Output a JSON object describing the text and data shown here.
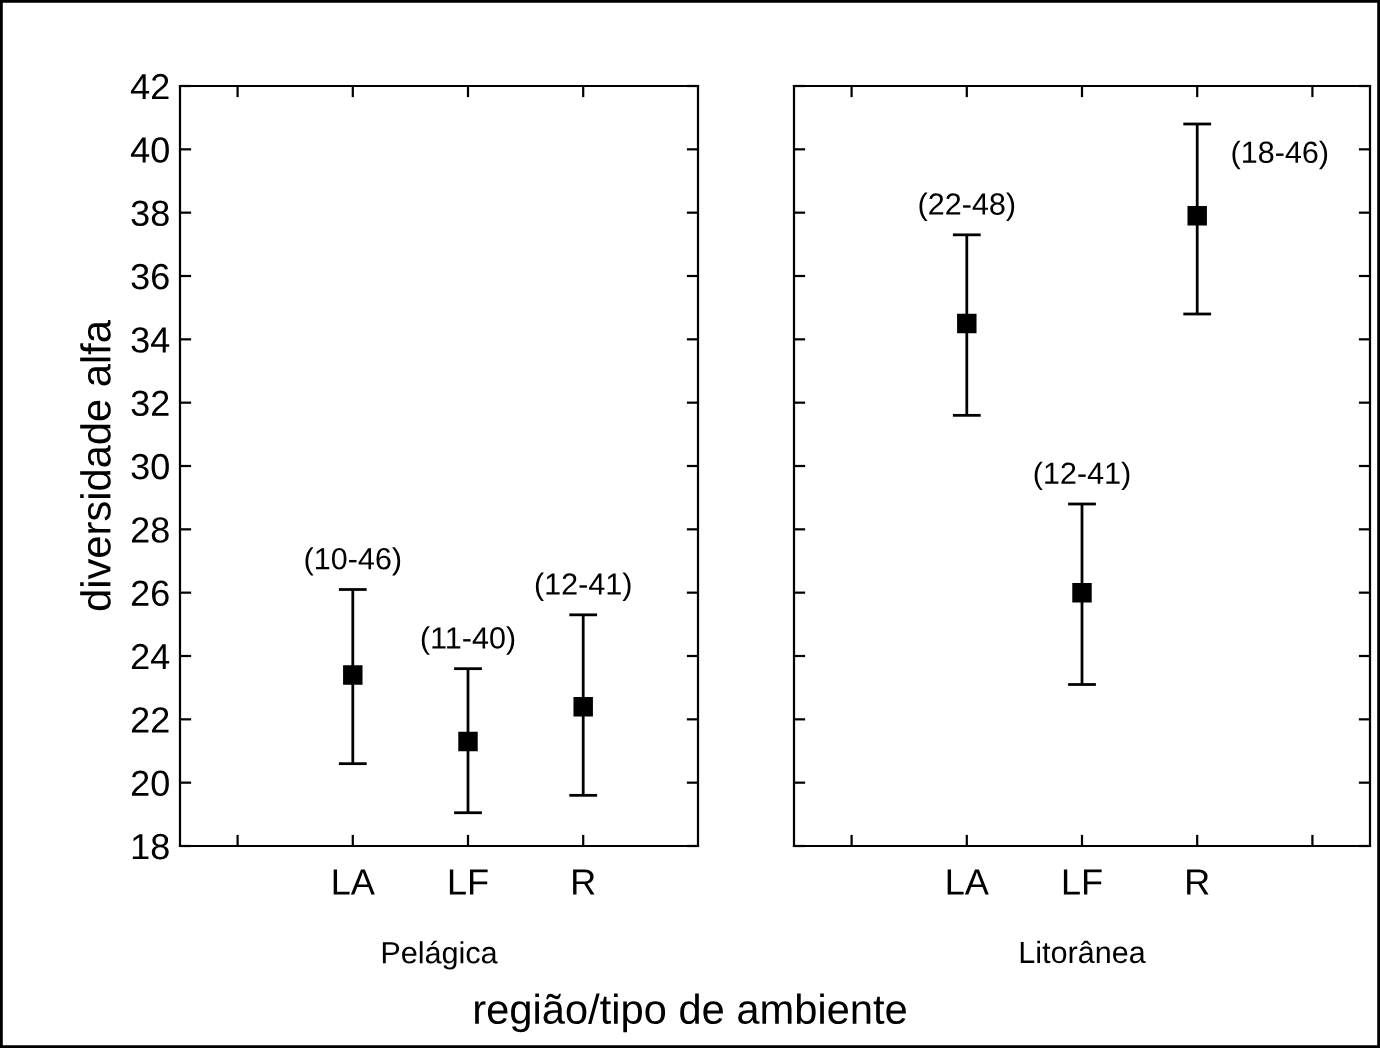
{
  "chart_data": [
    {
      "type": "scatter",
      "xlabel": "Pelágica",
      "ylabel": "diversidade alfa",
      "categories": [
        "LA",
        "LF",
        "R"
      ],
      "series": [
        {
          "color": "#000000",
          "values": [
            23.4,
            21.3,
            22.4
          ],
          "errors": [
            [
              20.6,
              26.1
            ],
            [
              19.05,
              23.6
            ],
            [
              19.6,
              25.3
            ]
          ]
        }
      ],
      "ylim": [
        18,
        42
      ],
      "yticks": [
        18,
        20,
        22,
        24,
        26,
        28,
        30,
        32,
        34,
        36,
        38,
        40,
        42
      ],
      "marker": "square",
      "grid": false,
      "legend": false,
      "annotations": [
        {
          "text": "(10-46)",
          "x": "LA",
          "y": 26.1
        },
        {
          "text": "(11-40)",
          "x": "LF",
          "y": 23.6
        },
        {
          "text": "(12-41)",
          "x": "R",
          "y": 25.3
        },
        "região/tipo de ambiente"
      ]
    },
    {
      "type": "scatter",
      "xlabel": "Litorânea",
      "categories": [
        "LA",
        "LF",
        "R"
      ],
      "series": [
        {
          "color": "#000000",
          "values": [
            34.5,
            26.0,
            37.9
          ],
          "errors": [
            [
              31.6,
              37.3
            ],
            [
              23.1,
              28.8
            ],
            [
              34.8,
              40.8
            ]
          ]
        }
      ],
      "ylim": [
        18,
        42
      ],
      "yticks": [
        18,
        20,
        22,
        24,
        26,
        28,
        30,
        32,
        34,
        36,
        38,
        40,
        42
      ],
      "marker": "square",
      "grid": false,
      "legend": false,
      "tick_labels": "x",
      "annotations": [
        {
          "text": "(22-48)",
          "x": "LA",
          "y": 37.3
        },
        {
          "text": "(12-41)",
          "x": "LF",
          "y": 28.8
        },
        {
          "text": "(18-46)",
          "x": "R",
          "y": 40.8
        }
      ]
    }
  ]
}
